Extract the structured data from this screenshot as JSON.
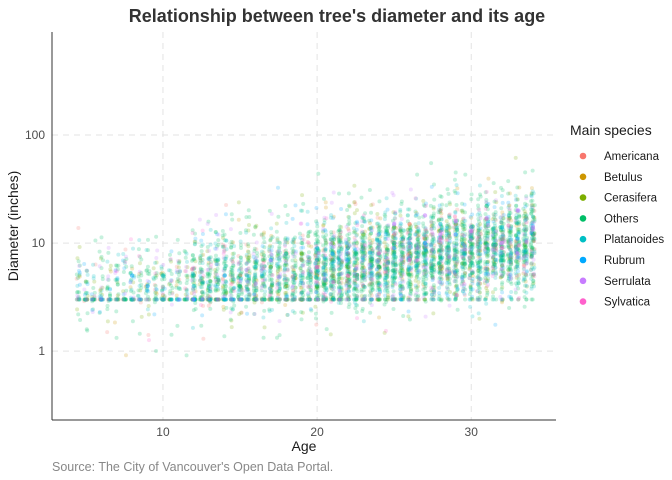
{
  "chart_data": {
    "type": "scatter",
    "title": "Relationship between tree's diameter and its age",
    "xlabel": "Age",
    "ylabel": "Diameter (inches)",
    "caption": "Source: The City of Vancouver's Open Data Portal.",
    "x_scale": "linear",
    "y_scale": "log10",
    "xlim": [
      2.8,
      35.5
    ],
    "ylim": [
      0.23,
      900
    ],
    "x_ticks": [
      10,
      20,
      30
    ],
    "x_tick_labels": [
      "10",
      "20",
      "30"
    ],
    "y_ticks": [
      1,
      10,
      100
    ],
    "y_tick_labels": [
      "1",
      "10",
      "100"
    ],
    "grid": true,
    "legend": {
      "title": "Main species",
      "placement": "right",
      "entries": [
        "Americana",
        "Betulus",
        "Cerasifera",
        "Others",
        "Platanoides",
        "Rubrum",
        "Serrulata",
        "Sylvatica"
      ]
    },
    "series": [
      {
        "name": "Americana",
        "color": "#F8766D",
        "weight": 0.6,
        "points": [
          [
            22,
            8
          ],
          [
            25,
            12
          ],
          [
            26,
            15
          ],
          [
            27,
            9
          ],
          [
            28,
            10
          ],
          [
            24,
            6
          ],
          [
            21,
            5
          ],
          [
            30,
            11
          ],
          [
            23,
            4
          ],
          [
            19,
            7
          ],
          [
            25,
            3
          ],
          [
            28,
            20
          ]
        ]
      },
      {
        "name": "Betulus",
        "color": "#CD9600",
        "weight": 0.7,
        "points": [
          [
            18,
            4
          ],
          [
            20,
            5
          ],
          [
            22,
            6
          ],
          [
            24,
            3
          ],
          [
            16,
            3
          ],
          [
            21,
            7
          ],
          [
            26,
            8
          ],
          [
            19,
            3
          ],
          [
            23,
            9
          ],
          [
            28,
            6
          ]
        ]
      },
      {
        "name": "Cerasifera",
        "color": "#7CAE00",
        "weight": 1.4,
        "points": [
          [
            15,
            5
          ],
          [
            17,
            6
          ],
          [
            19,
            8
          ],
          [
            21,
            10
          ],
          [
            23,
            12
          ],
          [
            25,
            14
          ],
          [
            27,
            11
          ],
          [
            29,
            15
          ],
          [
            13,
            3
          ],
          [
            18,
            3
          ],
          [
            20,
            4
          ],
          [
            24,
            7
          ]
        ]
      },
      {
        "name": "Others",
        "color": "#00BE67",
        "weight": 6,
        "points": [
          [
            5,
            3
          ],
          [
            10,
            3
          ],
          [
            15,
            4
          ],
          [
            20,
            7
          ],
          [
            25,
            10
          ],
          [
            30,
            14
          ],
          [
            34,
            12
          ],
          [
            12,
            5
          ],
          [
            18,
            8
          ],
          [
            22,
            9
          ],
          [
            26,
            11
          ],
          [
            28,
            13
          ],
          [
            31,
            22
          ],
          [
            16,
            3
          ],
          [
            24,
            6
          ]
        ]
      },
      {
        "name": "Platanoides",
        "color": "#00BFC4",
        "weight": 1.5,
        "points": [
          [
            8,
            3
          ],
          [
            12,
            4
          ],
          [
            16,
            6
          ],
          [
            20,
            9
          ],
          [
            24,
            12
          ],
          [
            28,
            15
          ],
          [
            32,
            14
          ],
          [
            10,
            5
          ],
          [
            14,
            3
          ],
          [
            26,
            10
          ],
          [
            30,
            11
          ],
          [
            22,
            7
          ]
        ]
      },
      {
        "name": "Rubrum",
        "color": "#00A9FF",
        "weight": 1.0,
        "points": [
          [
            6,
            3
          ],
          [
            9,
            4
          ],
          [
            11,
            3
          ],
          [
            14,
            5
          ],
          [
            17,
            7
          ],
          [
            21,
            8
          ],
          [
            25,
            9
          ],
          [
            29,
            12
          ],
          [
            33,
            11
          ],
          [
            8,
            5
          ],
          [
            12,
            3
          ],
          [
            27,
            10
          ]
        ]
      },
      {
        "name": "Serrulata",
        "color": "#C77CFF",
        "weight": 1.1,
        "points": [
          [
            25,
            15
          ],
          [
            27,
            18
          ],
          [
            29,
            16
          ],
          [
            31,
            17
          ],
          [
            33,
            20
          ],
          [
            30,
            13
          ],
          [
            32,
            10
          ],
          [
            34,
            14
          ],
          [
            28,
            12
          ],
          [
            33,
            8
          ]
        ]
      },
      {
        "name": "Sylvatica",
        "color": "#FF61CC",
        "weight": 0.4,
        "points": [
          [
            20,
            6
          ],
          [
            24,
            8
          ],
          [
            28,
            11
          ],
          [
            32,
            9
          ],
          [
            22,
            5
          ],
          [
            26,
            7
          ]
        ]
      }
    ]
  }
}
